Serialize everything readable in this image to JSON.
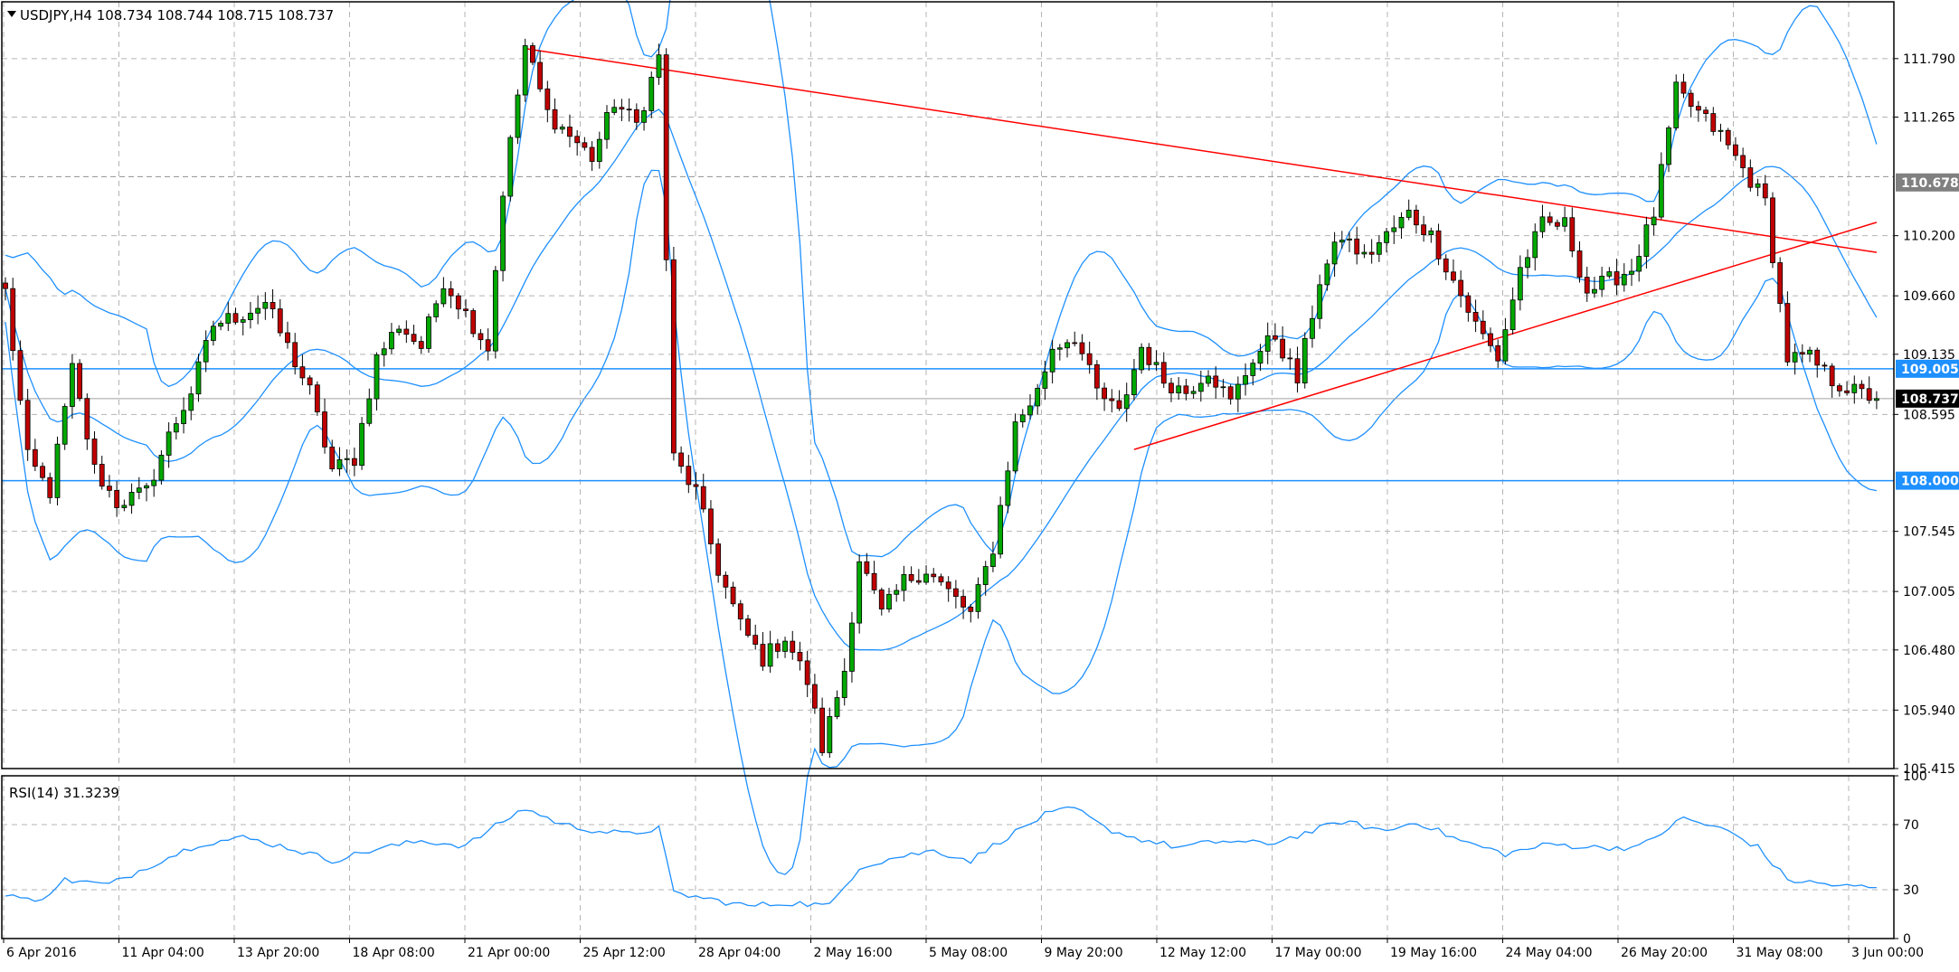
{
  "header": {
    "symbol_line": "USDJPY,H4  108.734 108.744 108.715 108.737",
    "indicator_line": "RSI(14) 31.3239"
  },
  "colors": {
    "bull": "#00a800",
    "bear": "#c00000",
    "bands": "#1e90ff",
    "trend": "#ff0000",
    "hline": "#1e90ff",
    "grid": "#b4b4b4",
    "rsi": "#1e90ff"
  },
  "chart_data": [
    {
      "type": "candlestick",
      "symbol": "USDJPY",
      "timeframe": "H4",
      "ylim": [
        105.415,
        112.3
      ],
      "y_ticks": [
        "111.790",
        "111.265",
        "110.200",
        "109.660",
        "109.135",
        "108.595",
        "107.545",
        "107.005",
        "106.480",
        "105.940",
        "105.415"
      ],
      "x_ticks": [
        "6 Apr 2016",
        "11 Apr 04:00",
        "13 Apr 20:00",
        "18 Apr 08:00",
        "21 Apr 00:00",
        "25 Apr 12:00",
        "28 Apr 04:00",
        "2 May 16:00",
        "5 May 08:00",
        "9 May 20:00",
        "12 May 12:00",
        "17 May 00:00",
        "19 May 16:00",
        "24 May 04:00",
        "26 May 20:00",
        "31 May 08:00",
        "3 Jun 00:00"
      ],
      "price_labels": [
        {
          "value": 110.678,
          "text": "110.678",
          "style": "gray"
        },
        {
          "value": 109.005,
          "text": "109.005",
          "style": "blue"
        },
        {
          "value": 108.737,
          "text": "108.737",
          "style": "black"
        },
        {
          "value": 108.0,
          "text": "108.000",
          "style": "blue"
        }
      ],
      "horizontal_lines": [
        109.005,
        108.0
      ],
      "bid_line": 108.737,
      "dashed_level": 110.73,
      "trendlines": [
        {
          "from_index": 70,
          "from_price": 111.88,
          "to_index": 252,
          "to_price": 110.05
        },
        {
          "from_index": 152,
          "from_price": 108.28,
          "to_index": 252,
          "to_price": 110.32
        }
      ],
      "anchors": [
        [
          0,
          109.7
        ],
        [
          3,
          108.2
        ],
        [
          6,
          107.9
        ],
        [
          9,
          109.0
        ],
        [
          12,
          108.1
        ],
        [
          15,
          107.8
        ],
        [
          19,
          107.9
        ],
        [
          22,
          108.4
        ],
        [
          25,
          108.8
        ],
        [
          28,
          109.4
        ],
        [
          32,
          109.5
        ],
        [
          35,
          109.6
        ],
        [
          38,
          109.2
        ],
        [
          41,
          108.8
        ],
        [
          44,
          108.1
        ],
        [
          47,
          108.2
        ],
        [
          50,
          109.1
        ],
        [
          53,
          109.4
        ],
        [
          56,
          109.2
        ],
        [
          59,
          109.8
        ],
        [
          62,
          109.5
        ],
        [
          65,
          109.2
        ],
        [
          67,
          110.6
        ],
        [
          70,
          111.9
        ],
        [
          73,
          111.3
        ],
        [
          76,
          111.1
        ],
        [
          79,
          110.9
        ],
        [
          82,
          111.4
        ],
        [
          85,
          111.2
        ],
        [
          88,
          111.8
        ],
        [
          90,
          108.2
        ],
        [
          93,
          107.9
        ],
        [
          96,
          107.2
        ],
        [
          99,
          106.7
        ],
        [
          102,
          106.4
        ],
        [
          105,
          106.6
        ],
        [
          108,
          106.2
        ],
        [
          110,
          105.6
        ],
        [
          113,
          106.3
        ],
        [
          115,
          107.3
        ],
        [
          118,
          106.8
        ],
        [
          121,
          107.1
        ],
        [
          124,
          107.2
        ],
        [
          127,
          107.0
        ],
        [
          130,
          106.8
        ],
        [
          133,
          107.4
        ],
        [
          136,
          108.5
        ],
        [
          139,
          108.8
        ],
        [
          141,
          109.2
        ],
        [
          144,
          109.3
        ],
        [
          147,
          108.8
        ],
        [
          150,
          108.6
        ],
        [
          153,
          109.2
        ],
        [
          156,
          108.9
        ],
        [
          159,
          108.8
        ],
        [
          162,
          109.0
        ],
        [
          165,
          108.7
        ],
        [
          168,
          109.1
        ],
        [
          171,
          109.3
        ],
        [
          174,
          108.9
        ],
        [
          177,
          109.8
        ],
        [
          180,
          110.2
        ],
        [
          183,
          110.0
        ],
        [
          186,
          110.2
        ],
        [
          189,
          110.4
        ],
        [
          192,
          110.2
        ],
        [
          195,
          109.8
        ],
        [
          198,
          109.4
        ],
        [
          201,
          109.1
        ],
        [
          204,
          109.9
        ],
        [
          207,
          110.3
        ],
        [
          210,
          110.3
        ],
        [
          213,
          109.7
        ],
        [
          216,
          109.8
        ],
        [
          219,
          109.9
        ],
        [
          222,
          110.4
        ],
        [
          225,
          111.5
        ],
        [
          228,
          111.3
        ],
        [
          231,
          111.1
        ],
        [
          234,
          110.8
        ],
        [
          237,
          110.5
        ],
        [
          240,
          109.1
        ],
        [
          243,
          109.1
        ],
        [
          246,
          108.9
        ],
        [
          249,
          108.8
        ],
        [
          252,
          108.737
        ]
      ],
      "n_bars": 253
    },
    {
      "type": "line",
      "indicator": "RSI",
      "period": 14,
      "value": 31.3239,
      "ylim": [
        0,
        100
      ],
      "y_ticks": [
        100,
        70,
        30,
        0
      ],
      "levels": [
        70,
        30
      ],
      "anchors": [
        [
          0,
          28
        ],
        [
          4,
          22
        ],
        [
          8,
          36
        ],
        [
          14,
          33
        ],
        [
          20,
          46
        ],
        [
          26,
          58
        ],
        [
          32,
          62
        ],
        [
          38,
          56
        ],
        [
          44,
          48
        ],
        [
          50,
          55
        ],
        [
          56,
          60
        ],
        [
          62,
          57
        ],
        [
          67,
          72
        ],
        [
          70,
          80
        ],
        [
          75,
          70
        ],
        [
          80,
          66
        ],
        [
          84,
          64
        ],
        [
          88,
          68
        ],
        [
          90,
          28
        ],
        [
          95,
          24
        ],
        [
          100,
          20
        ],
        [
          106,
          22
        ],
        [
          111,
          20
        ],
        [
          115,
          44
        ],
        [
          120,
          50
        ],
        [
          125,
          54
        ],
        [
          130,
          48
        ],
        [
          134,
          60
        ],
        [
          140,
          76
        ],
        [
          144,
          80
        ],
        [
          148,
          68
        ],
        [
          152,
          62
        ],
        [
          158,
          56
        ],
        [
          164,
          60
        ],
        [
          170,
          58
        ],
        [
          176,
          66
        ],
        [
          180,
          72
        ],
        [
          186,
          66
        ],
        [
          190,
          72
        ],
        [
          196,
          60
        ],
        [
          202,
          52
        ],
        [
          208,
          58
        ],
        [
          214,
          56
        ],
        [
          220,
          56
        ],
        [
          226,
          74
        ],
        [
          232,
          66
        ],
        [
          236,
          56
        ],
        [
          240,
          36
        ],
        [
          244,
          34
        ],
        [
          248,
          32
        ],
        [
          252,
          31.3239
        ]
      ]
    }
  ]
}
